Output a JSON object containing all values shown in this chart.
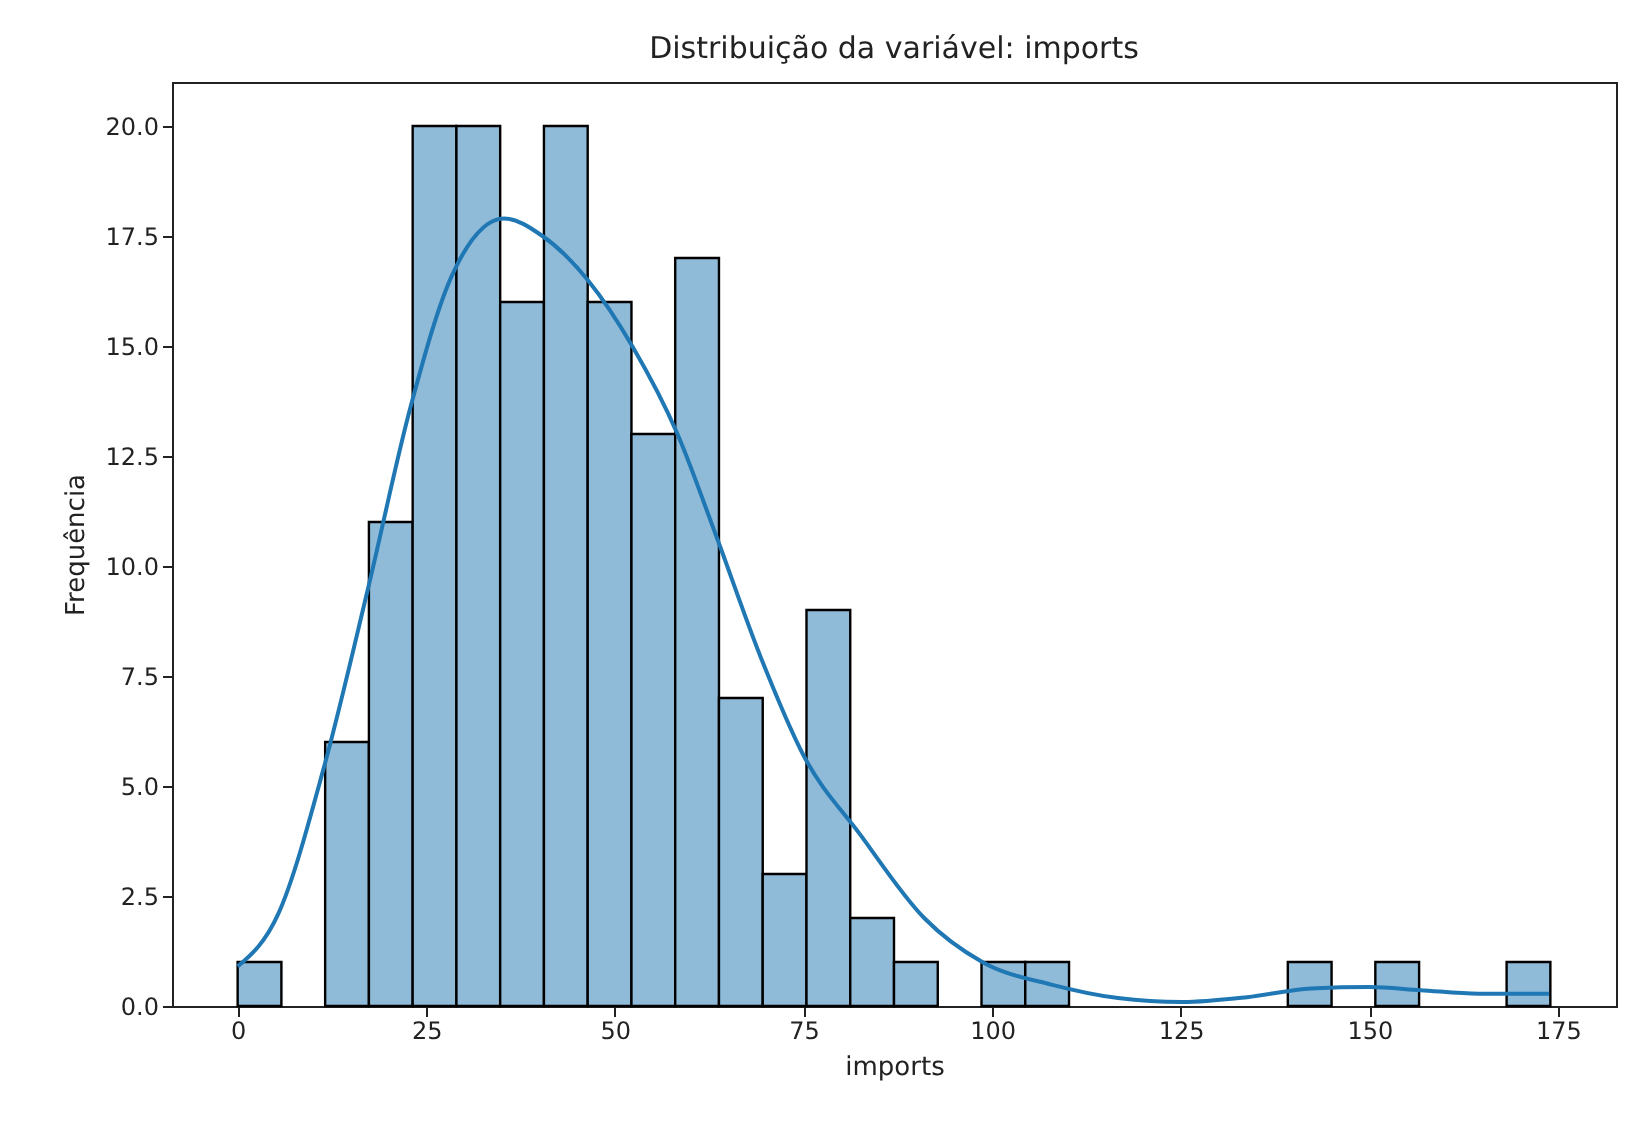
{
  "chart_data": {
    "type": "histogram",
    "title": "Distribuição da variável: imports",
    "xlabel": "imports",
    "ylabel": "Frequência",
    "bins": [
      0,
      5.8,
      11.6,
      17.4,
      23.2,
      29,
      34.8,
      40.6,
      46.4,
      52.2,
      58,
      63.8,
      69.6,
      75.4,
      81.2,
      87,
      92.8,
      98.6,
      104.4,
      110.2,
      116,
      121.8,
      127.6,
      133.4,
      139.2,
      145,
      150.8,
      156.6,
      162.4,
      168.2,
      174
    ],
    "values": [
      1,
      0,
      6,
      11,
      20,
      20,
      16,
      20,
      16,
      13,
      17,
      7,
      3,
      9,
      2,
      1,
      0,
      1,
      1,
      0,
      0,
      0,
      0,
      0,
      1,
      0,
      1,
      0,
      0,
      1
    ],
    "color": "#8fbbd9",
    "series": [
      {
        "type": "line",
        "color": "#1f77b4",
        "x": [
          0,
          5.4,
          11.4,
          17.3,
          22.9,
          28.4,
          35.3,
          40.4,
          46.4,
          52.3,
          58.3,
          63.4,
          69.4,
          75,
          82.5,
          91,
          98.7,
          108,
          116.7,
          125.2,
          133.8,
          142.3,
          150,
          156.8,
          164.5,
          173.8
        ],
        "values": [
          0.9,
          2.1,
          5.4,
          9.5,
          13.6,
          16.6,
          17.9,
          17.5,
          16.5,
          15,
          13,
          10.7,
          7.9,
          5.7,
          3.9,
          2,
          1,
          0.48,
          0.18,
          0.09,
          0.2,
          0.4,
          0.43,
          0.36,
          0.28,
          0.28
        ]
      }
    ],
    "xlim": [
      -8.7,
      182.7
    ],
    "ylim": [
      0,
      21
    ],
    "xticks": [
      0,
      25,
      50,
      75,
      100,
      125,
      150,
      175
    ],
    "yticks": [
      {
        "value": 0,
        "label": "0.0"
      },
      2.5,
      {
        "value": 5,
        "label": "5.0"
      },
      7.5,
      {
        "value": 10,
        "label": "10.0"
      },
      12.5,
      {
        "value": 15,
        "label": "15.0"
      },
      17.5,
      {
        "value": 20,
        "label": "20.0"
      }
    ],
    "grid": false
  }
}
